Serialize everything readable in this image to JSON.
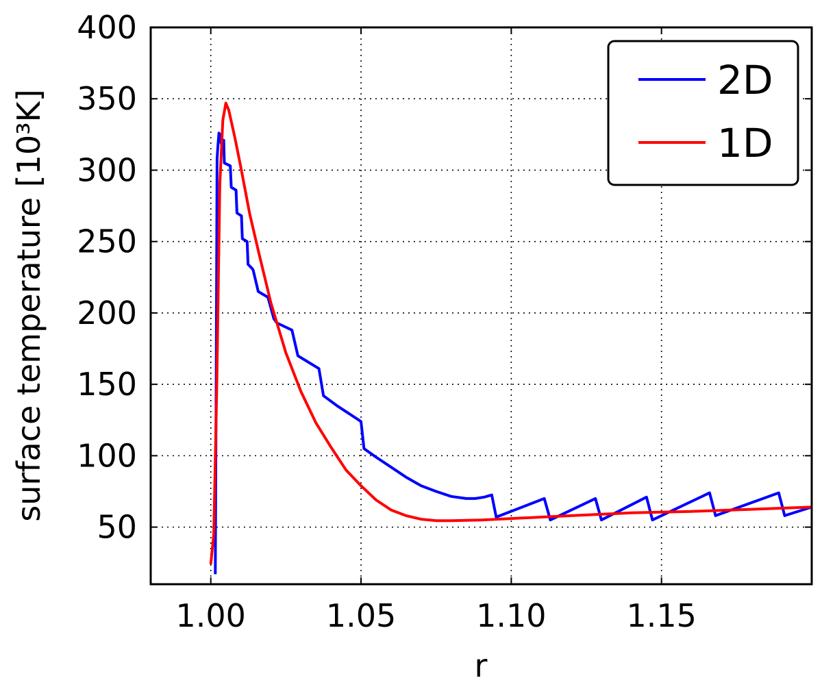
{
  "chart_data": {
    "type": "line",
    "xlabel": "r",
    "ylabel": "surface temperature [10³K]",
    "xlim": [
      0.98,
      1.2
    ],
    "ylim": [
      10,
      400
    ],
    "xticks": [
      1.0,
      1.05,
      1.1,
      1.15
    ],
    "xtick_labels": [
      "1.00",
      "1.05",
      "1.10",
      "1.15"
    ],
    "yticks": [
      50,
      100,
      150,
      200,
      250,
      300,
      350,
      400
    ],
    "ytick_labels": [
      "50",
      "100",
      "150",
      "200",
      "250",
      "300",
      "350",
      "400"
    ],
    "grid": true,
    "legend_position": "top-right",
    "series": [
      {
        "name": "2D",
        "color": "#0000ff",
        "points": [
          [
            1.0015,
            17
          ],
          [
            1.0018,
            150
          ],
          [
            1.0021,
            308
          ],
          [
            1.0024,
            318
          ],
          [
            1.0027,
            326
          ],
          [
            1.003,
            325
          ],
          [
            1.0033,
            320
          ],
          [
            1.0036,
            318
          ],
          [
            1.004,
            321
          ],
          [
            1.0043,
            321
          ],
          [
            1.0045,
            305
          ],
          [
            1.0065,
            303
          ],
          [
            1.0068,
            288
          ],
          [
            1.0084,
            286
          ],
          [
            1.0087,
            270
          ],
          [
            1.0102,
            268
          ],
          [
            1.0105,
            252
          ],
          [
            1.0121,
            250
          ],
          [
            1.0124,
            234
          ],
          [
            1.0138,
            231
          ],
          [
            1.0141,
            230
          ],
          [
            1.0158,
            215
          ],
          [
            1.0182,
            212
          ],
          [
            1.019,
            211
          ],
          [
            1.021,
            196
          ],
          [
            1.022,
            193
          ],
          [
            1.027,
            188
          ],
          [
            1.029,
            170
          ],
          [
            1.036,
            161
          ],
          [
            1.0375,
            142
          ],
          [
            1.042,
            135
          ],
          [
            1.05,
            124
          ],
          [
            1.051,
            105
          ],
          [
            1.055,
            99
          ],
          [
            1.06,
            92
          ],
          [
            1.065,
            85
          ],
          [
            1.07,
            79
          ],
          [
            1.075,
            75
          ],
          [
            1.08,
            71.5
          ],
          [
            1.085,
            70
          ],
          [
            1.088,
            70
          ],
          [
            1.091,
            71
          ],
          [
            1.0935,
            72.5
          ],
          [
            1.095,
            57
          ],
          [
            1.111,
            70
          ],
          [
            1.113,
            55
          ],
          [
            1.128,
            70
          ],
          [
            1.13,
            55
          ],
          [
            1.145,
            71
          ],
          [
            1.147,
            55
          ],
          [
            1.166,
            74
          ],
          [
            1.168,
            58
          ],
          [
            1.189,
            74
          ],
          [
            1.191,
            58
          ],
          [
            1.2,
            64
          ]
        ]
      },
      {
        "name": "1D",
        "color": "#ff0000",
        "points": [
          [
            1.0,
            24
          ],
          [
            1.001,
            45
          ],
          [
            1.002,
            150
          ],
          [
            1.003,
            290
          ],
          [
            1.004,
            335
          ],
          [
            1.005,
            347
          ],
          [
            1.006,
            342
          ],
          [
            1.008,
            323
          ],
          [
            1.01,
            302
          ],
          [
            1.013,
            269
          ],
          [
            1.016,
            242
          ],
          [
            1.02,
            207
          ],
          [
            1.025,
            172
          ],
          [
            1.03,
            145
          ],
          [
            1.035,
            123
          ],
          [
            1.04,
            106
          ],
          [
            1.045,
            90
          ],
          [
            1.05,
            79
          ],
          [
            1.055,
            69
          ],
          [
            1.06,
            62
          ],
          [
            1.065,
            58
          ],
          [
            1.07,
            55.5
          ],
          [
            1.075,
            54.5
          ],
          [
            1.08,
            54.5
          ],
          [
            1.09,
            55
          ],
          [
            1.1,
            56
          ],
          [
            1.12,
            58
          ],
          [
            1.14,
            60
          ],
          [
            1.16,
            61
          ],
          [
            1.18,
            62.5
          ],
          [
            1.2,
            64
          ]
        ]
      }
    ]
  }
}
